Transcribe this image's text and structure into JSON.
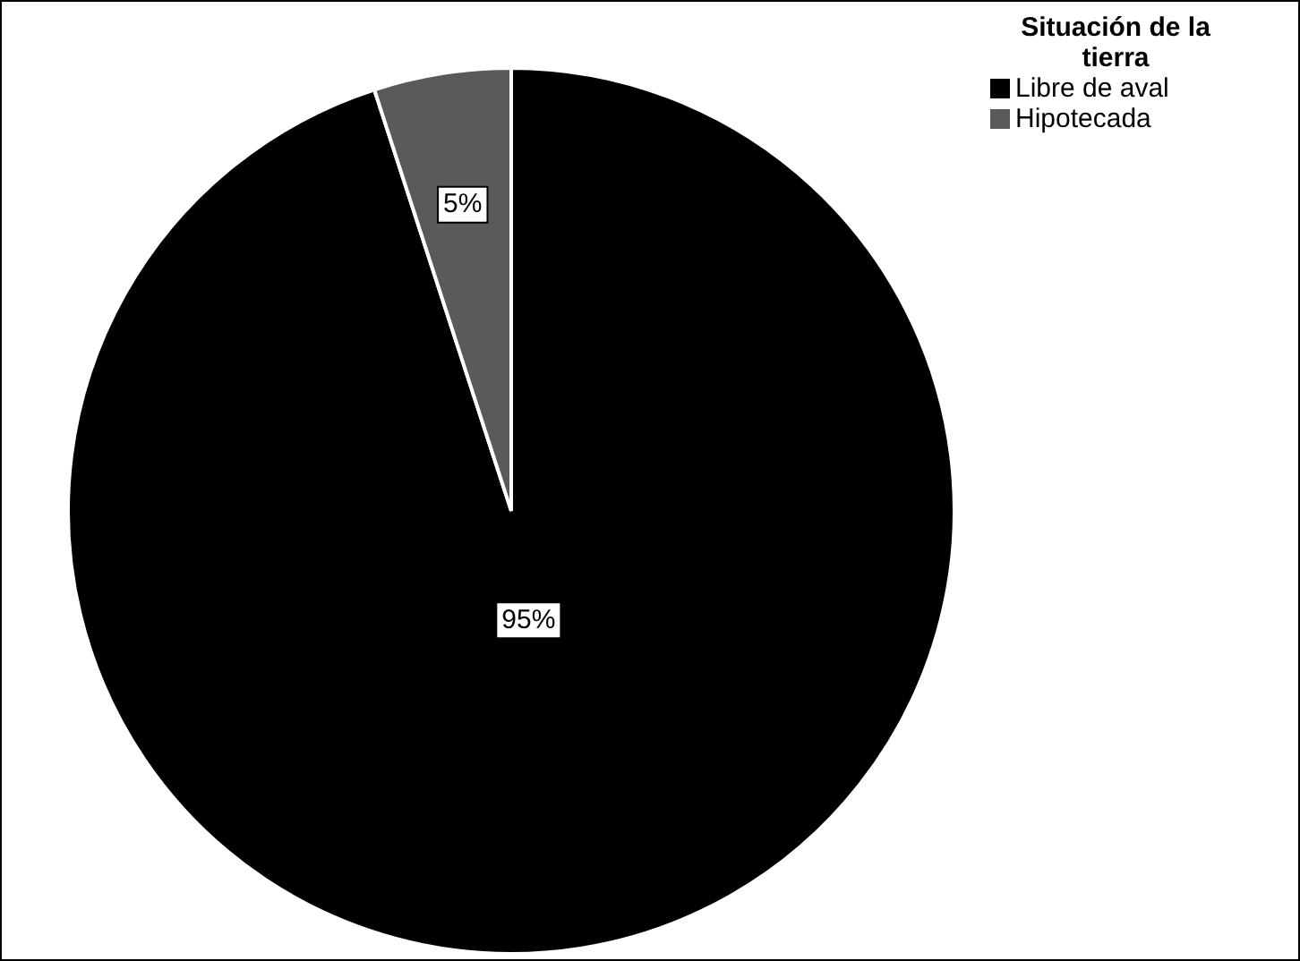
{
  "chart_data": {
    "type": "pie",
    "categories": [
      "Libre de aval",
      "Hipotecada"
    ],
    "values": [
      95,
      5
    ],
    "colors": [
      "#000000",
      "#5a5a5a"
    ],
    "value_labels": [
      "95%",
      "5%"
    ],
    "legend_title": "Situación de la tierra",
    "legend": "top right"
  }
}
